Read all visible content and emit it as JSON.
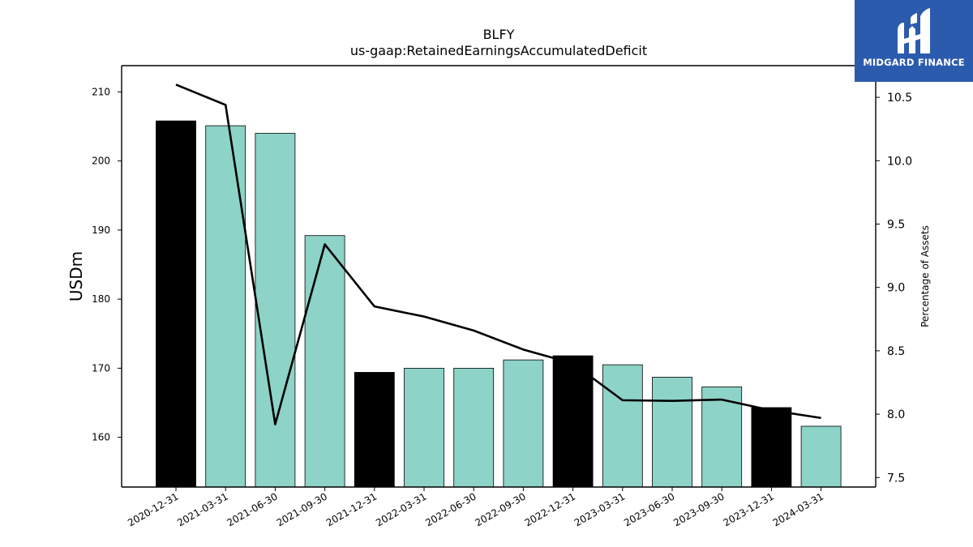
{
  "chart_data": {
    "type": "bar",
    "title": "BLFY",
    "subtitle": "us-gaap:RetainedEarningsAccumulatedDeficit",
    "ylabel": "USDm",
    "y2label": "Percentage of Assets",
    "categories": [
      "2020-12-31",
      "2021-03-31",
      "2021-06-30",
      "2021-09-30",
      "2021-12-31",
      "2022-03-31",
      "2022-06-30",
      "2022-09-30",
      "2022-12-31",
      "2023-03-31",
      "2023-06-30",
      "2023-09-30",
      "2023-12-31",
      "2024-03-31"
    ],
    "bar_values": [
      205.8,
      205.1,
      204.0,
      189.2,
      169.4,
      170.0,
      170.0,
      171.2,
      171.8,
      170.5,
      168.7,
      167.3,
      164.3,
      161.6
    ],
    "bar_colors": [
      "#000000",
      "#8dd3c7",
      "#8dd3c7",
      "#8dd3c7",
      "#000000",
      "#8dd3c7",
      "#8dd3c7",
      "#8dd3c7",
      "#000000",
      "#8dd3c7",
      "#8dd3c7",
      "#8dd3c7",
      "#000000",
      "#8dd3c7"
    ],
    "line_values": [
      10.6,
      10.44,
      7.92,
      9.34,
      8.85,
      8.77,
      8.66,
      8.51,
      8.4,
      8.11,
      8.105,
      8.115,
      8.03,
      7.97
    ],
    "ylim": [
      152.8,
      213.8
    ],
    "y2lim": [
      7.425,
      10.75
    ],
    "yticks": [
      160,
      170,
      180,
      190,
      200,
      210
    ],
    "y2ticks": [
      "7.5",
      "8.0",
      "8.5",
      "9.0",
      "9.5",
      "10.0",
      "10.5"
    ],
    "colors": {
      "accent": "#8dd3c7",
      "highlight": "#000000",
      "line": "#000000"
    }
  },
  "logo": {
    "text": "MIDGARD FINANCE",
    "background": "#2b5bad"
  }
}
